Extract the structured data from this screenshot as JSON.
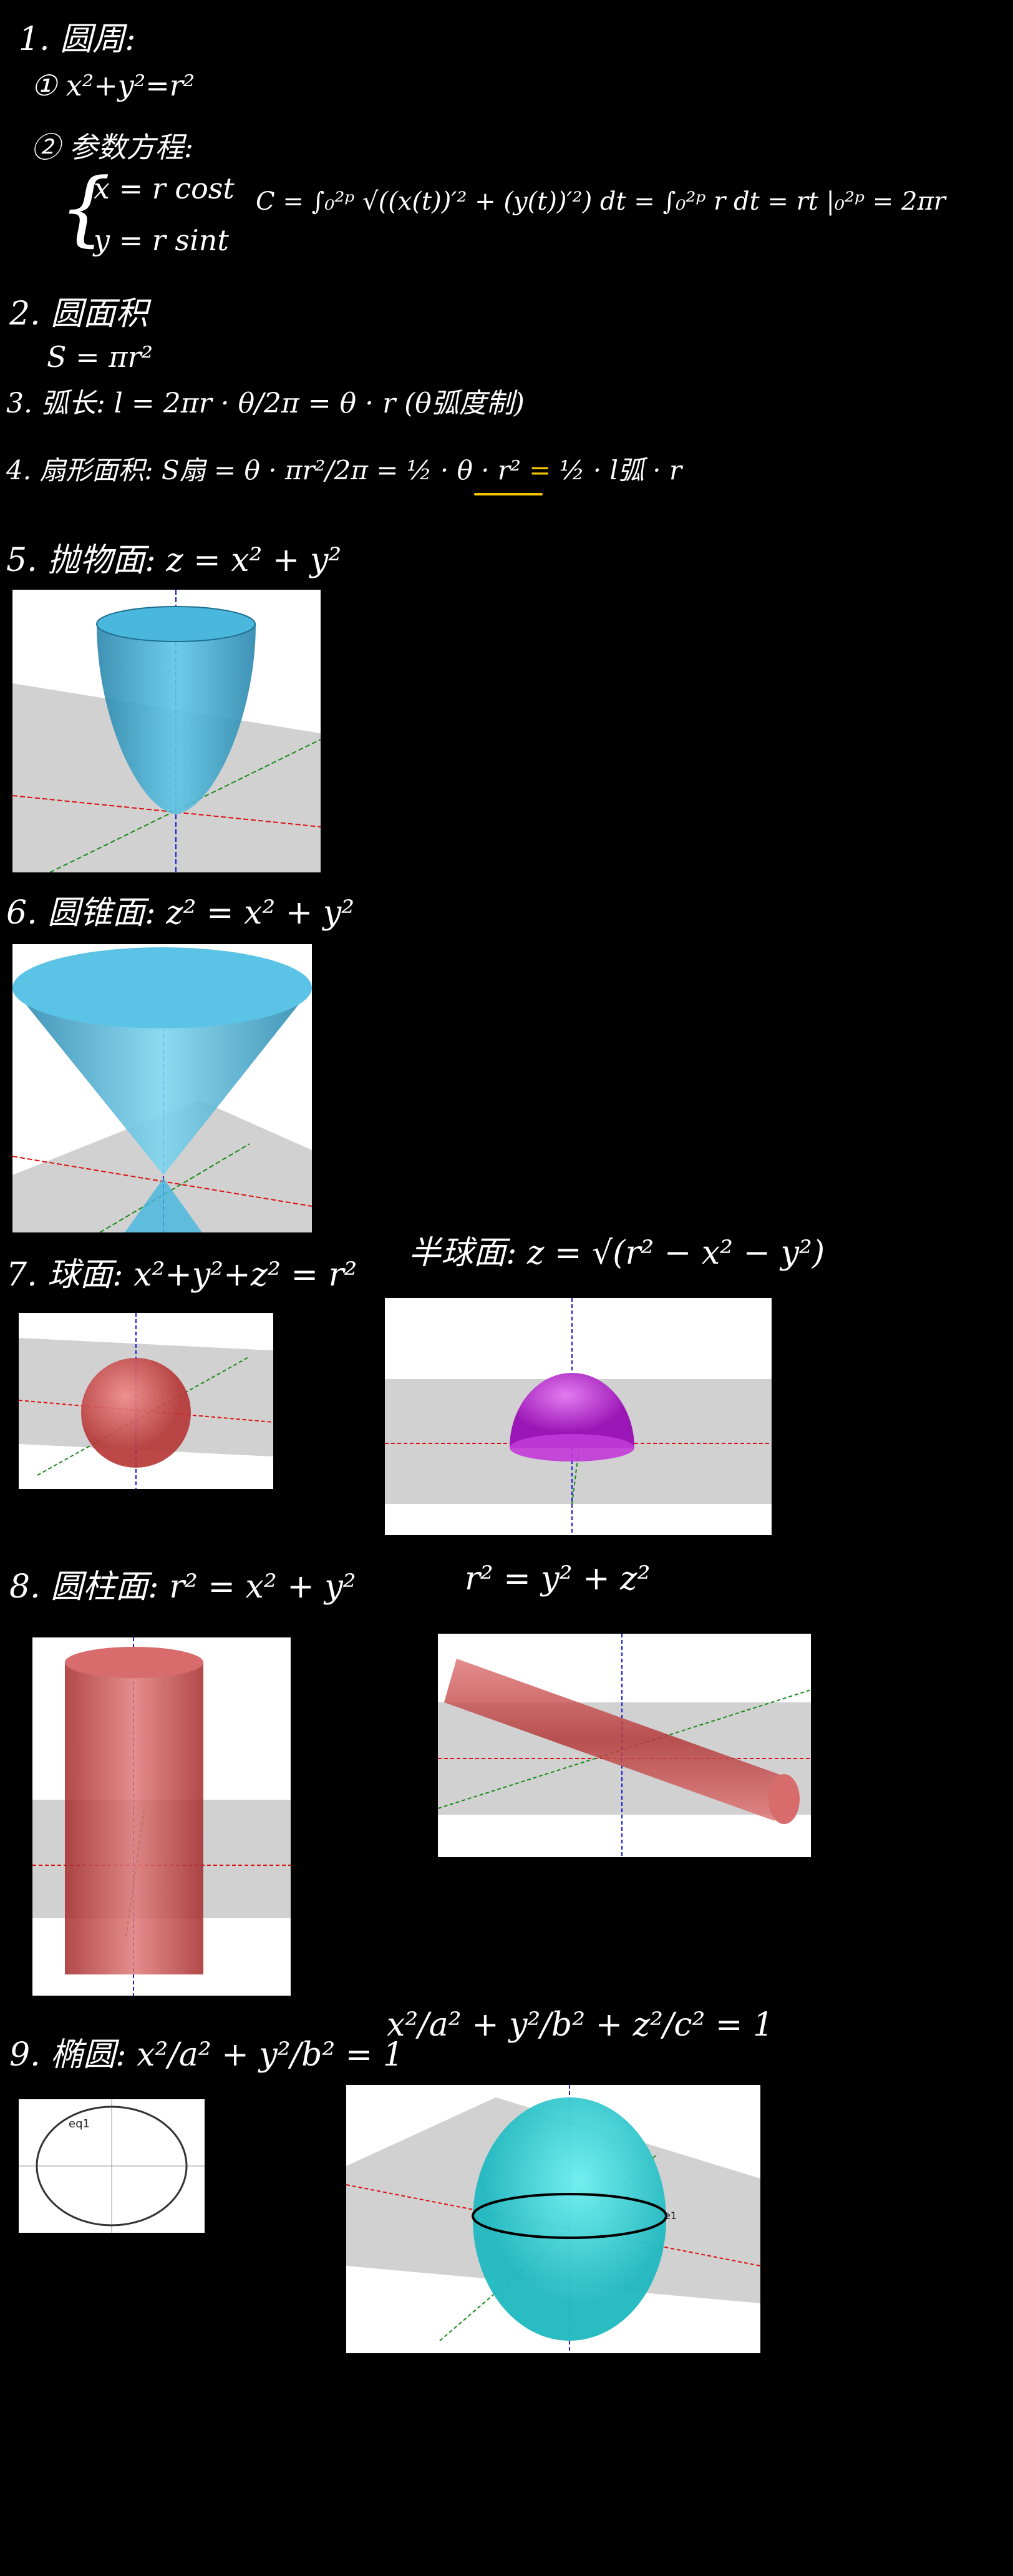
{
  "sec1": {
    "title": "1. 圆周:",
    "eq1": "① x²+y²=r²",
    "eq2": "② 参数方程:",
    "param_x": "x = r cost",
    "param_y": "y = r sint",
    "circ": "C = ∫₀²ᵖ √((x(t))′² + (y(t))′²) dt = ∫₀²ᵖ r dt = rt |₀²ᵖ = 2πr"
  },
  "sec2": {
    "title": "2. 圆面积",
    "eq": "S = πr²"
  },
  "sec3": {
    "eq": "3. 弧长: l = 2πr · θ/2π = θ · r  (θ弧度制)"
  },
  "sec4": {
    "eq": "4. 扇形面积: S扇 = θ · πr²/2π = ½ · θ · r²",
    "eq_yellow": " = ",
    "eq_end": "½ · l弧 · r"
  },
  "sec5": {
    "title": "5. 抛物面: z = x² + y²"
  },
  "sec6": {
    "title": "6. 圆锥面: z² = x² + y²"
  },
  "sec7": {
    "title": "7. 球面: x²+y²+z² = r²",
    "title_b": "半球面: z = √(r² − x² − y²)"
  },
  "sec8": {
    "title": "8. 圆柱面: r² = x² + y²",
    "title_b": "r² = y² + z²"
  },
  "sec9": {
    "title": "9. 椭圆: x²/a² + y²/b² = 1",
    "title_b": "x²/a² + y²/b² + z²/c² = 1",
    "ellipse_label": "eq1",
    "ellipsoid_label": "e1"
  },
  "colors": {
    "background": "#000000",
    "ink": "#ffffff",
    "highlight": "#f5c400",
    "paraboloid": "#3aa9d0",
    "cone": "#42b6de",
    "sphere": "#d04a4a",
    "hemisphere": "#b51fd1",
    "cylinder": "#c53b3b",
    "ellipsoid": "#2fd0d8",
    "axis_x": "#d11",
    "axis_y": "#1a8a1a",
    "axis_z": "#1a1ad0"
  }
}
